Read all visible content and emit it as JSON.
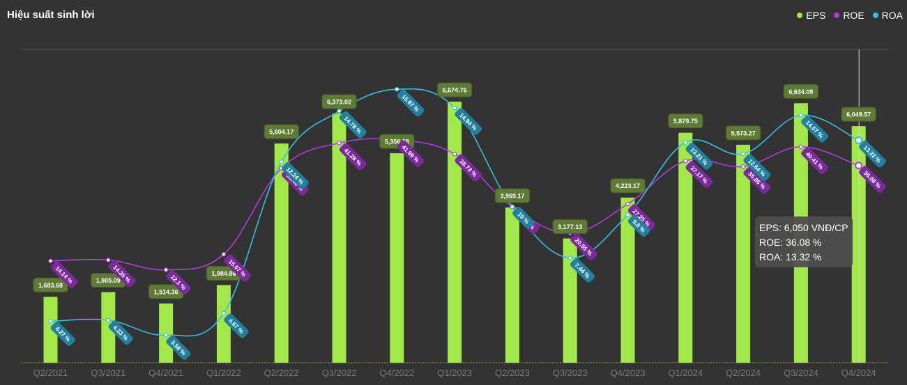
{
  "title": "Hiệu suất sinh lời",
  "legend": [
    {
      "key": "eps",
      "label": "EPS",
      "color": "#a3e84a"
    },
    {
      "key": "roe",
      "label": "ROE",
      "color": "#b23ae0"
    },
    {
      "key": "roa",
      "label": "ROA",
      "color": "#38bde8"
    }
  ],
  "tooltip": {
    "eps": "EPS: 6,050 VNĐ/CP",
    "roe": "ROE: 36.08 %",
    "roa": "ROA: 13.32 %"
  },
  "chart_data": {
    "type": "bar",
    "title": "Hiệu suất sinh lời",
    "categories": [
      "Q2/2021",
      "Q3/2021",
      "Q4/2021",
      "Q1/2022",
      "Q2/2022",
      "Q3/2022",
      "Q4/2022",
      "Q1/2023",
      "Q2/2023",
      "Q3/2023",
      "Q4/2023",
      "Q1/2024",
      "Q2/2024",
      "Q3/2024",
      "Q4/2024"
    ],
    "series": [
      {
        "name": "EPS",
        "type": "bar",
        "values": [
          1683.68,
          1805.09,
          1514.36,
          1984.86,
          5604.17,
          6373.02,
          5356.08,
          6674.76,
          3969.17,
          3177.13,
          4223.17,
          5879.75,
          5573.27,
          6634.09,
          6049.57
        ],
        "labels": [
          "1,683.68",
          "1,805.09",
          "1,514.36",
          "1,984.86",
          "5,604.17",
          "6,373.02",
          "5,356.08",
          "6,674.76",
          "3,969.17",
          "3,177.13",
          "4,223.17",
          "5,879.75",
          "5,573.27",
          "6,634.09",
          "6,049.57"
        ]
      },
      {
        "name": "ROE",
        "type": "line",
        "values": [
          14.14,
          14.35,
          12.1,
          15.67,
          35.46,
          41.28,
          41.99,
          38.73,
          26.57,
          20.55,
          27.25,
          37.17,
          35.86,
          40.41,
          36.08
        ],
        "labels": [
          "14.14 %",
          "14.35 %",
          "12.1 %",
          "15.67 %",
          "35.46 %",
          "41.28 %",
          "41.99 %",
          "38.73 %",
          "26.57 %",
          "20.55 %",
          "27.25 %",
          "37.17 %",
          "35.86 %",
          "40.41 %",
          "36.08 %"
        ]
      },
      {
        "name": "ROA",
        "type": "line",
        "values": [
          4.27,
          4.33,
          3.58,
          4.67,
          12.24,
          14.78,
          15.87,
          14.94,
          10,
          7.44,
          9.6,
          13.21,
          12.64,
          14.57,
          13.32
        ],
        "labels": [
          "4.27 %",
          "4.33 %",
          "3.58 %",
          "4.67 %",
          "12.24 %",
          "14.78 %",
          "15.87 %",
          "14.94 %",
          "10 %",
          "7.44 %",
          "9.6 %",
          "13.21 %",
          "12.64 %",
          "14.57 %",
          "13.32 %"
        ]
      }
    ],
    "highlighted_category": "Q4/2024",
    "legend_position": "top-right"
  }
}
